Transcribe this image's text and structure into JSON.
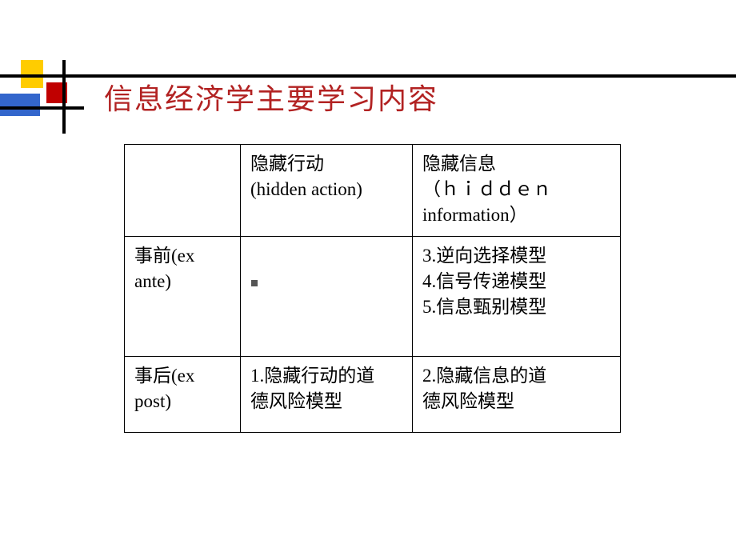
{
  "title": "信息经济学主要学习内容",
  "table": {
    "header": {
      "col2_line1": "隐藏行动",
      "col2_line2": "(hidden action)",
      "col3_line1": "隐藏信息",
      "col3_line2": "（ｈｉｄｄｅｎ",
      "col3_line3": "information）"
    },
    "row_exante": {
      "label_line1": "事前(ex",
      "label_line2": "ante)",
      "col3_line1": "3.逆向选择模型",
      "col3_line2": "4.信号传递模型",
      "col3_line3": "5.信息甄别模型"
    },
    "row_expost": {
      "label_line1": "事后(ex",
      "label_line2": "post)",
      "col2_line1": "1.隐藏行动的道",
      "col2_line2": "德风险模型",
      "col3_line1": "2.隐藏信息的道",
      "col3_line2": "德风险模型"
    }
  },
  "colors": {
    "title_color": "#b22222",
    "red_square": "#c00000",
    "yellow_square": "#ffcc00",
    "blue_square": "#3366cc",
    "border": "#000000",
    "text": "#000000",
    "background": "#ffffff"
  }
}
